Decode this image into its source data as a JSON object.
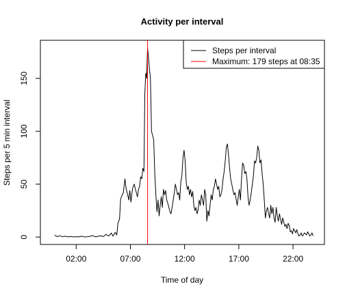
{
  "chart_data": {
    "type": "line",
    "title": "Activity per interval",
    "xlabel": "Time of day",
    "ylabel": "Steps per 5 min interval",
    "xlim": [
      -1.3,
      24.9
    ],
    "ylim": [
      -7,
      186
    ],
    "x_unit": "hour of day",
    "x_ticks": [
      {
        "value": 2,
        "label": "02:00"
      },
      {
        "value": 7,
        "label": "07:00"
      },
      {
        "value": 12,
        "label": "12:00"
      },
      {
        "value": 17,
        "label": "17:00"
      },
      {
        "value": 22,
        "label": "22:00"
      }
    ],
    "y_ticks": [
      0,
      50,
      100,
      150
    ],
    "legend_position": "top-right",
    "series": [
      {
        "name": "Steps per interval",
        "color": "#000000",
        "points": [
          [
            0.0,
            1.7
          ],
          [
            0.25,
            0.5
          ],
          [
            0.5,
            1.2
          ],
          [
            0.75,
            0.3
          ],
          [
            1.0,
            0.8
          ],
          [
            1.25,
            0.2
          ],
          [
            1.5,
            0.6
          ],
          [
            1.75,
            0.1
          ],
          [
            2.0,
            0.4
          ],
          [
            2.25,
            0.2
          ],
          [
            2.5,
            0.8
          ],
          [
            2.75,
            0.1
          ],
          [
            3.0,
            0.3
          ],
          [
            3.25,
            0.6
          ],
          [
            3.5,
            1.5
          ],
          [
            3.75,
            0.2
          ],
          [
            4.0,
            0.6
          ],
          [
            4.25,
            1.3
          ],
          [
            4.5,
            0.4
          ],
          [
            4.75,
            2.5
          ],
          [
            5.0,
            1.0
          ],
          [
            5.25,
            3.8
          ],
          [
            5.4,
            0.8
          ],
          [
            5.6,
            4.5
          ],
          [
            5.75,
            2.0
          ],
          [
            5.85,
            13.0
          ],
          [
            6.0,
            17.0
          ],
          [
            6.1,
            36.0
          ],
          [
            6.25,
            40.0
          ],
          [
            6.35,
            42.0
          ],
          [
            6.5,
            55.0
          ],
          [
            6.6,
            46.0
          ],
          [
            6.75,
            40.0
          ],
          [
            6.85,
            35.0
          ],
          [
            6.95,
            44.0
          ],
          [
            7.05,
            33.0
          ],
          [
            7.2,
            46.0
          ],
          [
            7.35,
            50.0
          ],
          [
            7.5,
            44.0
          ],
          [
            7.65,
            38.0
          ],
          [
            7.75,
            45.0
          ],
          [
            7.85,
            48.0
          ],
          [
            7.95,
            57.0
          ],
          [
            8.05,
            55.0
          ],
          [
            8.15,
            65.0
          ],
          [
            8.25,
            62.0
          ],
          [
            8.33,
            135.0
          ],
          [
            8.42,
            155.0
          ],
          [
            8.5,
            150.0
          ],
          [
            8.583,
            179.0
          ],
          [
            8.67,
            170.0
          ],
          [
            8.75,
            160.0
          ],
          [
            8.85,
            150.0
          ],
          [
            8.95,
            100.0
          ],
          [
            9.05,
            96.0
          ],
          [
            9.15,
            92.0
          ],
          [
            9.25,
            60.0
          ],
          [
            9.35,
            40.0
          ],
          [
            9.45,
            24.0
          ],
          [
            9.55,
            35.0
          ],
          [
            9.65,
            20.0
          ],
          [
            9.75,
            30.0
          ],
          [
            9.85,
            38.0
          ],
          [
            9.95,
            28.0
          ],
          [
            10.05,
            45.0
          ],
          [
            10.15,
            40.0
          ],
          [
            10.25,
            44.0
          ],
          [
            10.35,
            35.0
          ],
          [
            10.45,
            32.0
          ],
          [
            10.55,
            28.0
          ],
          [
            10.65,
            24.0
          ],
          [
            10.75,
            22.0
          ],
          [
            10.85,
            28.0
          ],
          [
            10.95,
            35.0
          ],
          [
            11.05,
            42.0
          ],
          [
            11.15,
            50.0
          ],
          [
            11.25,
            45.0
          ],
          [
            11.35,
            40.0
          ],
          [
            11.45,
            42.0
          ],
          [
            11.55,
            35.0
          ],
          [
            11.65,
            52.0
          ],
          [
            11.75,
            58.0
          ],
          [
            11.85,
            75.0
          ],
          [
            11.95,
            82.0
          ],
          [
            12.05,
            72.0
          ],
          [
            12.15,
            52.0
          ],
          [
            12.25,
            45.0
          ],
          [
            12.35,
            48.0
          ],
          [
            12.45,
            40.0
          ],
          [
            12.55,
            45.0
          ],
          [
            12.65,
            38.0
          ],
          [
            12.75,
            43.0
          ],
          [
            12.85,
            30.0
          ],
          [
            12.95,
            25.0
          ],
          [
            13.05,
            28.0
          ],
          [
            13.15,
            22.0
          ],
          [
            13.25,
            26.0
          ],
          [
            13.35,
            35.0
          ],
          [
            13.45,
            30.0
          ],
          [
            13.55,
            40.0
          ],
          [
            13.65,
            35.0
          ],
          [
            13.75,
            30.0
          ],
          [
            13.85,
            45.0
          ],
          [
            13.95,
            40.0
          ],
          [
            14.05,
            15.0
          ],
          [
            14.15,
            25.0
          ],
          [
            14.25,
            20.0
          ],
          [
            14.35,
            30.0
          ],
          [
            14.45,
            40.0
          ],
          [
            14.55,
            35.0
          ],
          [
            14.65,
            45.0
          ],
          [
            14.75,
            48.0
          ],
          [
            14.85,
            55.0
          ],
          [
            14.95,
            50.0
          ],
          [
            15.05,
            45.0
          ],
          [
            15.15,
            48.0
          ],
          [
            15.25,
            38.0
          ],
          [
            15.35,
            40.0
          ],
          [
            15.45,
            45.0
          ],
          [
            15.55,
            55.0
          ],
          [
            15.65,
            62.0
          ],
          [
            15.75,
            72.0
          ],
          [
            15.85,
            85.0
          ],
          [
            15.95,
            88.0
          ],
          [
            16.05,
            78.0
          ],
          [
            16.15,
            65.0
          ],
          [
            16.25,
            55.0
          ],
          [
            16.35,
            50.0
          ],
          [
            16.45,
            45.0
          ],
          [
            16.55,
            40.0
          ],
          [
            16.65,
            42.0
          ],
          [
            16.75,
            36.0
          ],
          [
            16.85,
            30.0
          ],
          [
            16.95,
            38.0
          ],
          [
            17.05,
            45.0
          ],
          [
            17.15,
            35.0
          ],
          [
            17.25,
            55.0
          ],
          [
            17.35,
            70.0
          ],
          [
            17.45,
            68.0
          ],
          [
            17.55,
            60.0
          ],
          [
            17.65,
            62.0
          ],
          [
            17.75,
            55.0
          ],
          [
            17.85,
            38.0
          ],
          [
            17.95,
            30.0
          ],
          [
            18.05,
            35.0
          ],
          [
            18.15,
            42.0
          ],
          [
            18.25,
            50.0
          ],
          [
            18.35,
            58.0
          ],
          [
            18.45,
            72.0
          ],
          [
            18.55,
            70.0
          ],
          [
            18.65,
            75.0
          ],
          [
            18.75,
            86.0
          ],
          [
            18.85,
            82.0
          ],
          [
            18.95,
            70.0
          ],
          [
            19.05,
            73.0
          ],
          [
            19.15,
            60.0
          ],
          [
            19.25,
            50.0
          ],
          [
            19.35,
            35.0
          ],
          [
            19.45,
            18.0
          ],
          [
            19.55,
            25.0
          ],
          [
            19.65,
            28.0
          ],
          [
            19.75,
            22.0
          ],
          [
            19.85,
            18.0
          ],
          [
            19.95,
            30.0
          ],
          [
            20.05,
            22.0
          ],
          [
            20.15,
            28.0
          ],
          [
            20.25,
            18.0
          ],
          [
            20.35,
            14.0
          ],
          [
            20.45,
            28.0
          ],
          [
            20.55,
            20.0
          ],
          [
            20.65,
            15.0
          ],
          [
            20.75,
            22.0
          ],
          [
            20.85,
            17.0
          ],
          [
            20.95,
            12.0
          ],
          [
            21.05,
            18.0
          ],
          [
            21.15,
            14.0
          ],
          [
            21.25,
            10.0
          ],
          [
            21.35,
            12.0
          ],
          [
            21.45,
            8.0
          ],
          [
            21.55,
            13.0
          ],
          [
            21.65,
            11.0
          ],
          [
            21.75,
            5.0
          ],
          [
            21.85,
            6.0
          ],
          [
            21.95,
            3.0
          ],
          [
            22.05,
            8.0
          ],
          [
            22.15,
            6.0
          ],
          [
            22.25,
            4.0
          ],
          [
            22.35,
            7.0
          ],
          [
            22.45,
            3.0
          ],
          [
            22.55,
            1.0
          ],
          [
            22.65,
            2.0
          ],
          [
            22.75,
            4.0
          ],
          [
            22.85,
            1.0
          ],
          [
            22.95,
            2.0
          ],
          [
            23.05,
            4.0
          ],
          [
            23.15,
            3.0
          ],
          [
            23.25,
            2.0
          ],
          [
            23.35,
            5.0
          ],
          [
            23.45,
            3.0
          ],
          [
            23.55,
            1.0
          ],
          [
            23.65,
            2.0
          ],
          [
            23.75,
            4.0
          ],
          [
            23.85,
            1.0
          ]
        ]
      },
      {
        "name": "Maximum: 179 steps at 08:35",
        "color": "#ff0000",
        "vertical_line_x": 8.583
      }
    ]
  }
}
